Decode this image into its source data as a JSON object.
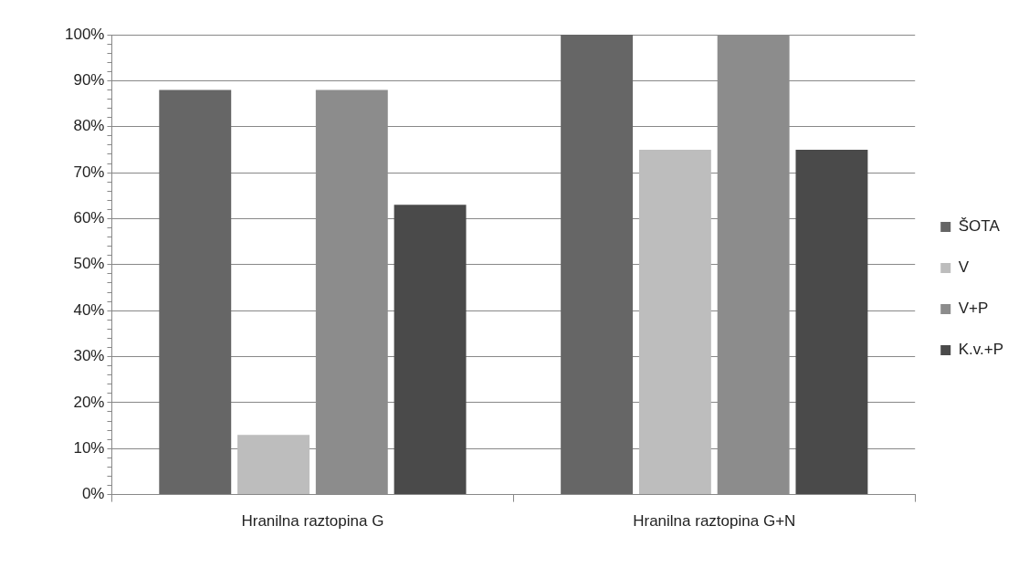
{
  "chart_data": {
    "type": "bar",
    "categories": [
      "Hranilna raztopina G",
      "Hranilna raztopina G+N"
    ],
    "series": [
      {
        "name": "ŠOTA",
        "color": "#666666",
        "values": [
          88,
          100
        ]
      },
      {
        "name": "V",
        "color": "#bdbdbd",
        "values": [
          13,
          75
        ]
      },
      {
        "name": "V+P",
        "color": "#8c8c8c",
        "values": [
          88,
          100
        ]
      },
      {
        "name": "K.v.+P",
        "color": "#4a4a4a",
        "values": [
          63,
          75
        ]
      }
    ],
    "ylim": [
      0,
      100
    ],
    "yticks": [
      {
        "value": 0,
        "label": "0%"
      },
      {
        "value": 2,
        "label": null
      },
      {
        "value": 4,
        "label": null
      },
      {
        "value": 6,
        "label": null
      },
      {
        "value": 8,
        "label": null
      },
      {
        "value": 10,
        "label": "10%"
      },
      {
        "value": 12,
        "label": null
      },
      {
        "value": 14,
        "label": null
      },
      {
        "value": 16,
        "label": null
      },
      {
        "value": 18,
        "label": null
      },
      {
        "value": 20,
        "label": "20%"
      },
      {
        "value": 22,
        "label": null
      },
      {
        "value": 24,
        "label": null
      },
      {
        "value": 26,
        "label": null
      },
      {
        "value": 28,
        "label": null
      },
      {
        "value": 30,
        "label": "30%"
      },
      {
        "value": 32,
        "label": null
      },
      {
        "value": 34,
        "label": null
      },
      {
        "value": 36,
        "label": null
      },
      {
        "value": 38,
        "label": null
      },
      {
        "value": 40,
        "label": "40%"
      },
      {
        "value": 42,
        "label": null
      },
      {
        "value": 44,
        "label": null
      },
      {
        "value": 46,
        "label": null
      },
      {
        "value": 48,
        "label": null
      },
      {
        "value": 50,
        "label": "50%"
      },
      {
        "value": 52,
        "label": null
      },
      {
        "value": 54,
        "label": null
      },
      {
        "value": 56,
        "label": null
      },
      {
        "value": 58,
        "label": null
      },
      {
        "value": 60,
        "label": "60%"
      },
      {
        "value": 62,
        "label": null
      },
      {
        "value": 64,
        "label": null
      },
      {
        "value": 66,
        "label": null
      },
      {
        "value": 68,
        "label": null
      },
      {
        "value": 70,
        "label": "70%"
      },
      {
        "value": 72,
        "label": null
      },
      {
        "value": 74,
        "label": null
      },
      {
        "value": 76,
        "label": null
      },
      {
        "value": 78,
        "label": null
      },
      {
        "value": 80,
        "label": "80%"
      },
      {
        "value": 82,
        "label": null
      },
      {
        "value": 84,
        "label": null
      },
      {
        "value": 86,
        "label": null
      },
      {
        "value": 88,
        "label": null
      },
      {
        "value": 90,
        "label": "90%"
      },
      {
        "value": 92,
        "label": null
      },
      {
        "value": 94,
        "label": null
      },
      {
        "value": 96,
        "label": null
      },
      {
        "value": 98,
        "label": null
      },
      {
        "value": 100,
        "label": "100%"
      }
    ],
    "grid": "y",
    "legend": "right"
  }
}
